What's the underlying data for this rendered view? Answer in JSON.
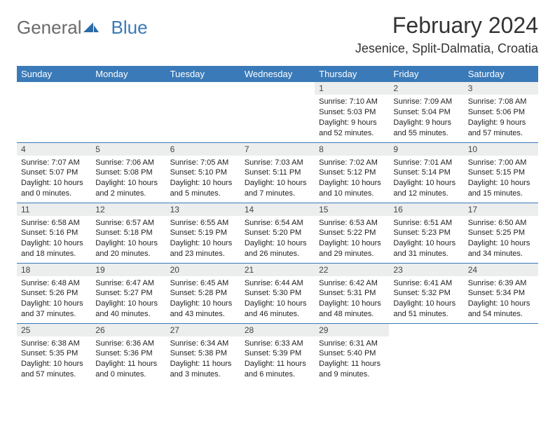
{
  "logo": {
    "text1": "General",
    "text2": "Blue"
  },
  "title": "February 2024",
  "location": "Jesenice, Split-Dalmatia, Croatia",
  "colors": {
    "header_bg": "#3a7ab8",
    "header_text": "#ffffff",
    "daynum_bg": "#eceded",
    "border": "#3a7ab8",
    "logo_gray": "#6a6a6a",
    "logo_blue": "#3a7ab8"
  },
  "day_headers": [
    "Sunday",
    "Monday",
    "Tuesday",
    "Wednesday",
    "Thursday",
    "Friday",
    "Saturday"
  ],
  "weeks": [
    [
      null,
      null,
      null,
      null,
      {
        "n": "1",
        "sr": "7:10 AM",
        "ss": "5:03 PM",
        "dh": "9",
        "dm": "52"
      },
      {
        "n": "2",
        "sr": "7:09 AM",
        "ss": "5:04 PM",
        "dh": "9",
        "dm": "55"
      },
      {
        "n": "3",
        "sr": "7:08 AM",
        "ss": "5:06 PM",
        "dh": "9",
        "dm": "57"
      }
    ],
    [
      {
        "n": "4",
        "sr": "7:07 AM",
        "ss": "5:07 PM",
        "dh": "10",
        "dm": "0"
      },
      {
        "n": "5",
        "sr": "7:06 AM",
        "ss": "5:08 PM",
        "dh": "10",
        "dm": "2"
      },
      {
        "n": "6",
        "sr": "7:05 AM",
        "ss": "5:10 PM",
        "dh": "10",
        "dm": "5"
      },
      {
        "n": "7",
        "sr": "7:03 AM",
        "ss": "5:11 PM",
        "dh": "10",
        "dm": "7"
      },
      {
        "n": "8",
        "sr": "7:02 AM",
        "ss": "5:12 PM",
        "dh": "10",
        "dm": "10"
      },
      {
        "n": "9",
        "sr": "7:01 AM",
        "ss": "5:14 PM",
        "dh": "10",
        "dm": "12"
      },
      {
        "n": "10",
        "sr": "7:00 AM",
        "ss": "5:15 PM",
        "dh": "10",
        "dm": "15"
      }
    ],
    [
      {
        "n": "11",
        "sr": "6:58 AM",
        "ss": "5:16 PM",
        "dh": "10",
        "dm": "18"
      },
      {
        "n": "12",
        "sr": "6:57 AM",
        "ss": "5:18 PM",
        "dh": "10",
        "dm": "20"
      },
      {
        "n": "13",
        "sr": "6:55 AM",
        "ss": "5:19 PM",
        "dh": "10",
        "dm": "23"
      },
      {
        "n": "14",
        "sr": "6:54 AM",
        "ss": "5:20 PM",
        "dh": "10",
        "dm": "26"
      },
      {
        "n": "15",
        "sr": "6:53 AM",
        "ss": "5:22 PM",
        "dh": "10",
        "dm": "29"
      },
      {
        "n": "16",
        "sr": "6:51 AM",
        "ss": "5:23 PM",
        "dh": "10",
        "dm": "31"
      },
      {
        "n": "17",
        "sr": "6:50 AM",
        "ss": "5:25 PM",
        "dh": "10",
        "dm": "34"
      }
    ],
    [
      {
        "n": "18",
        "sr": "6:48 AM",
        "ss": "5:26 PM",
        "dh": "10",
        "dm": "37"
      },
      {
        "n": "19",
        "sr": "6:47 AM",
        "ss": "5:27 PM",
        "dh": "10",
        "dm": "40"
      },
      {
        "n": "20",
        "sr": "6:45 AM",
        "ss": "5:28 PM",
        "dh": "10",
        "dm": "43"
      },
      {
        "n": "21",
        "sr": "6:44 AM",
        "ss": "5:30 PM",
        "dh": "10",
        "dm": "46"
      },
      {
        "n": "22",
        "sr": "6:42 AM",
        "ss": "5:31 PM",
        "dh": "10",
        "dm": "48"
      },
      {
        "n": "23",
        "sr": "6:41 AM",
        "ss": "5:32 PM",
        "dh": "10",
        "dm": "51"
      },
      {
        "n": "24",
        "sr": "6:39 AM",
        "ss": "5:34 PM",
        "dh": "10",
        "dm": "54"
      }
    ],
    [
      {
        "n": "25",
        "sr": "6:38 AM",
        "ss": "5:35 PM",
        "dh": "10",
        "dm": "57"
      },
      {
        "n": "26",
        "sr": "6:36 AM",
        "ss": "5:36 PM",
        "dh": "11",
        "dm": "0"
      },
      {
        "n": "27",
        "sr": "6:34 AM",
        "ss": "5:38 PM",
        "dh": "11",
        "dm": "3"
      },
      {
        "n": "28",
        "sr": "6:33 AM",
        "ss": "5:39 PM",
        "dh": "11",
        "dm": "6"
      },
      {
        "n": "29",
        "sr": "6:31 AM",
        "ss": "5:40 PM",
        "dh": "11",
        "dm": "9"
      },
      null,
      null
    ]
  ]
}
